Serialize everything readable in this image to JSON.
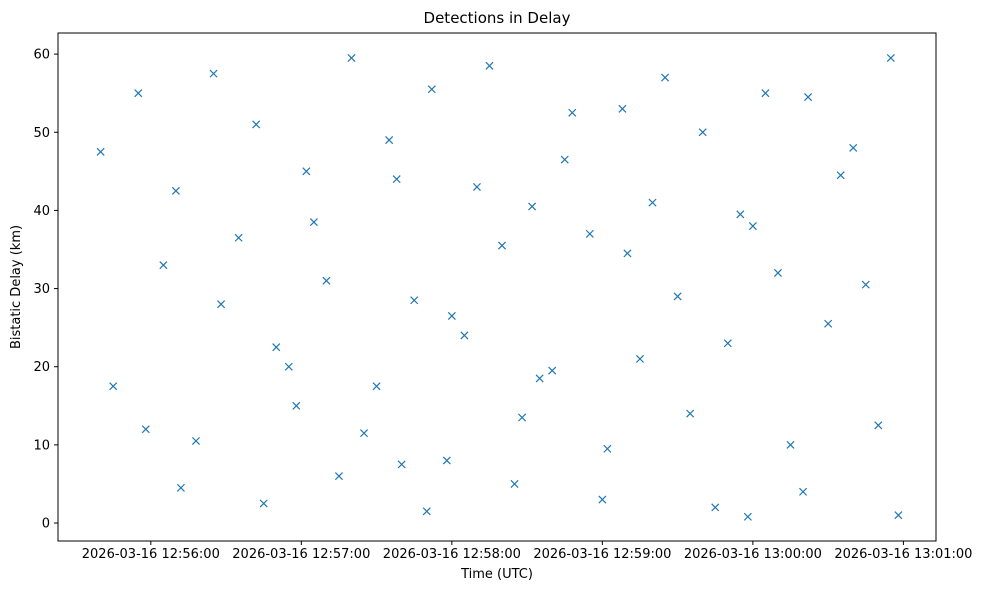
{
  "chart_data": {
    "type": "scatter",
    "title": "Detections in Delay",
    "xlabel": "Time (UTC)",
    "ylabel": "Bistatic Delay (km)",
    "xlim": [
      "2026-03-16 12:55:23",
      "2026-03-16 13:01:13"
    ],
    "ylim": [
      -2.3,
      62.7
    ],
    "xticks": [
      "2026-03-16 12:56:00",
      "2026-03-16 12:57:00",
      "2026-03-16 12:58:00",
      "2026-03-16 12:59:00",
      "2026-03-16 13:00:00",
      "2026-03-16 13:01:00"
    ],
    "yticks": [
      0,
      10,
      20,
      30,
      40,
      50,
      60
    ],
    "grid": false,
    "marker": "x",
    "color": "#1f77b4",
    "series": [
      {
        "x": [
          "2026-03-16 12:55:40",
          "2026-03-16 12:55:55",
          "2026-03-16 12:56:10",
          "2026-03-16 12:56:25",
          "2026-03-16 12:56:42",
          "2026-03-16 12:57:05",
          "2026-03-16 12:57:20",
          "2026-03-16 12:57:38",
          "2026-03-16 12:57:52",
          "2026-03-16 12:58:15",
          "2026-03-16 12:58:32",
          "2026-03-16 12:58:48",
          "2026-03-16 12:59:08",
          "2026-03-16 12:59:25",
          "2026-03-16 12:59:40",
          "2026-03-16 13:00:05",
          "2026-03-16 13:00:22",
          "2026-03-16 13:00:40",
          "2026-03-16 13:00:55",
          "2026-03-16 12:56:05",
          "2026-03-16 12:56:35",
          "2026-03-16 12:57:10",
          "2026-03-16 12:57:45",
          "2026-03-16 12:58:20",
          "2026-03-16 12:58:55",
          "2026-03-16 12:59:30",
          "2026-03-16 13:00:10",
          "2026-03-16 13:00:45",
          "2026-03-16 12:56:50",
          "2026-03-16 12:57:30",
          "2026-03-16 12:58:05",
          "2026-03-16 12:58:40",
          "2026-03-16 12:59:15",
          "2026-03-16 12:59:50",
          "2026-03-16 13:00:30",
          "2026-03-16 12:55:58",
          "2026-03-16 12:56:18",
          "2026-03-16 12:56:58",
          "2026-03-16 12:57:25",
          "2026-03-16 12:57:58",
          "2026-03-16 12:58:28",
          "2026-03-16 12:59:02",
          "2026-03-16 12:59:35",
          "2026-03-16 13:00:15",
          "2026-03-16 13:00:50",
          "2026-03-16 12:56:12",
          "2026-03-16 12:56:45",
          "2026-03-16 12:57:15",
          "2026-03-16 12:57:50",
          "2026-03-16 12:58:25",
          "2026-03-16 12:59:00",
          "2026-03-16 12:59:45",
          "2026-03-16 13:00:20",
          "2026-03-16 13:00:58",
          "2026-03-16 12:55:45",
          "2026-03-16 12:56:28",
          "2026-03-16 12:57:02",
          "2026-03-16 12:57:35",
          "2026-03-16 12:58:10",
          "2026-03-16 12:58:45",
          "2026-03-16 12:59:20",
          "2026-03-16 12:59:55",
          "2026-03-16 13:00:35",
          "2026-03-16 12:56:55",
          "2026-03-16 12:58:00",
          "2026-03-16 12:59:10",
          "2026-03-16 13:00:00",
          "2026-03-16 12:57:40",
          "2026-03-16 12:58:35",
          "2026-03-16 12:59:58"
        ],
        "y": [
          47.5,
          55.0,
          42.5,
          57.5,
          51.0,
          38.5,
          59.5,
          44.0,
          55.5,
          58.5,
          40.5,
          52.5,
          53.0,
          57.0,
          50.0,
          55.0,
          54.5,
          48.0,
          59.5,
          33.0,
          36.5,
          31.0,
          28.5,
          35.5,
          37.0,
          29.0,
          32.0,
          30.5,
          22.5,
          17.5,
          24.0,
          19.5,
          21.0,
          23.0,
          25.5,
          12.0,
          10.5,
          15.0,
          11.5,
          8.0,
          13.5,
          9.5,
          14.0,
          10.0,
          12.5,
          4.5,
          2.5,
          6.0,
          1.5,
          5.0,
          3.0,
          2.0,
          4.0,
          1.0,
          17.5,
          28.0,
          45.0,
          49.0,
          43.0,
          46.5,
          41.0,
          39.5,
          44.5,
          20.0,
          26.5,
          34.5,
          38.0,
          7.5,
          18.5,
          0.8
        ]
      }
    ]
  }
}
